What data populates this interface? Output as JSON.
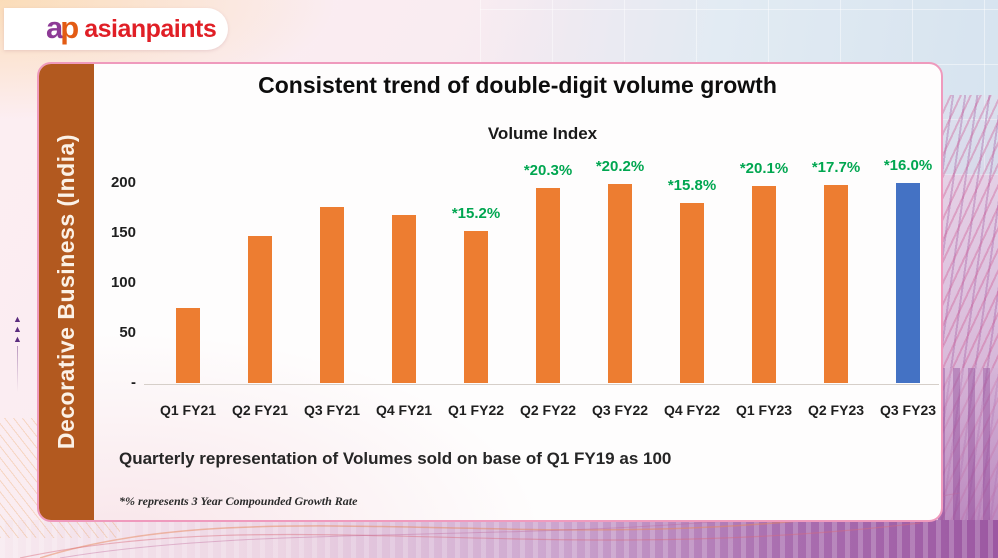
{
  "logo": {
    "mark_a": "a",
    "mark_p": "p",
    "brand": "asianpaints"
  },
  "sidebar": {
    "label": "Decorative Business (India)"
  },
  "header": {
    "title": "Consistent trend of double-digit volume growth"
  },
  "chart_data": {
    "type": "bar",
    "title": "Volume Index",
    "categories": [
      "Q1 FY21",
      "Q2 FY21",
      "Q3 FY21",
      "Q4 FY21",
      "Q1 FY22",
      "Q2 FY22",
      "Q3 FY22",
      "Q4 FY22",
      "Q1 FY23",
      "Q2 FY23",
      "Q3 FY23"
    ],
    "values": [
      75,
      147,
      176,
      168,
      152,
      195,
      199,
      180,
      197,
      198,
      200
    ],
    "growth_labels": [
      "",
      "",
      "",
      "",
      "*15.2%",
      "*20.3%",
      "*20.2%",
      "*15.8%",
      "*20.1%",
      "*17.7%",
      "*16.0%"
    ],
    "growth_label_color": "#00A650",
    "bar_color": "#ED7D31",
    "highlight_bar": {
      "category": "Q3 FY23",
      "color": "#4472C4"
    },
    "y_ticks": [
      {
        "label": "200",
        "value": 200
      },
      {
        "label": "150",
        "value": 150
      },
      {
        "label": "100",
        "value": 100
      },
      {
        "label": "50",
        "value": 50
      },
      {
        "label": "-",
        "value": 0
      }
    ],
    "ylim": [
      0,
      230
    ],
    "xlabel": "",
    "ylabel": "",
    "gridlines": false,
    "legend": "none"
  },
  "footer": {
    "base_note": "Quarterly representation of Volumes sold on base of Q1 FY19 as 100",
    "cagr_note": "*% represents 3 Year Compounded Growth Rate"
  },
  "decor": {
    "triangle": "▲"
  }
}
